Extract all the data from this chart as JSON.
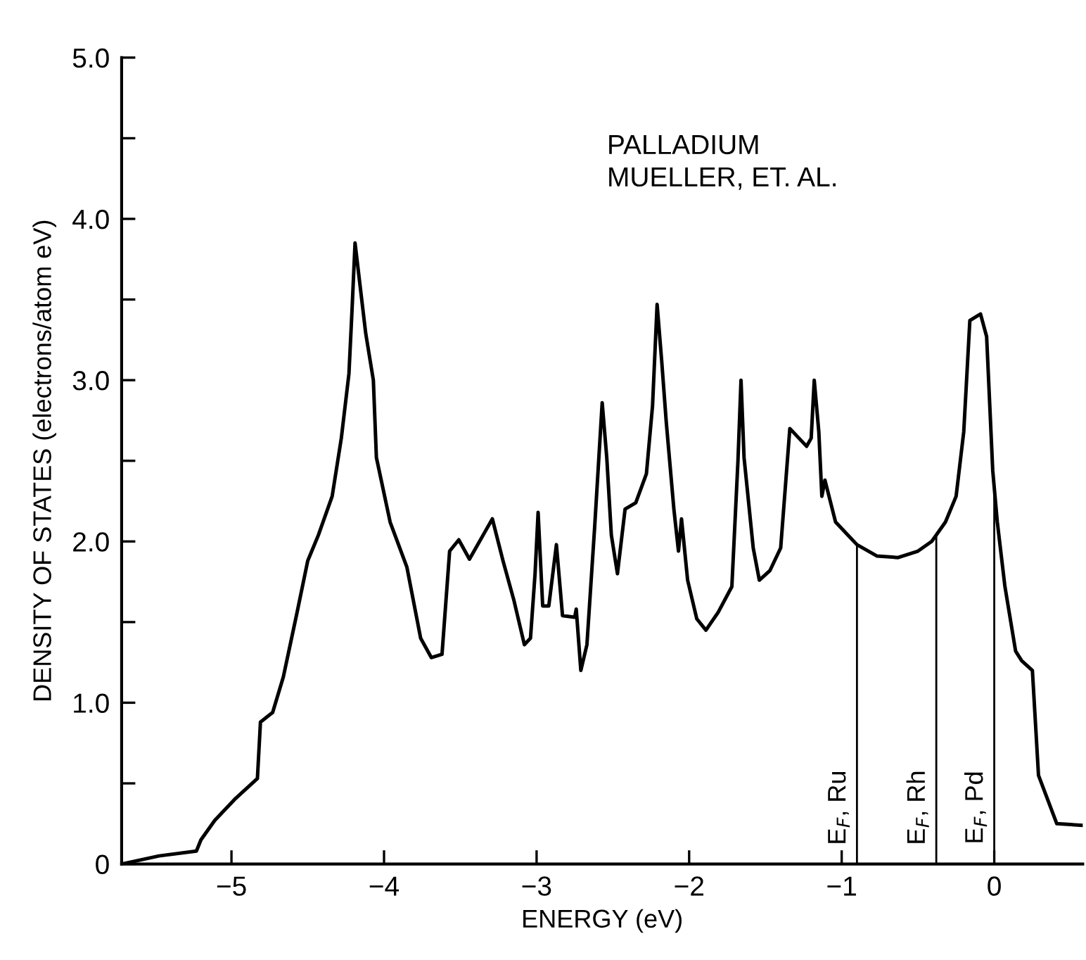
{
  "chart_data": {
    "type": "line",
    "xlabel": "ENERGY (eV)",
    "ylabel": "DENSITY OF STATES (electrons/atom eV)",
    "annotations": [
      "PALLADIUM",
      "MUELLER, ET. AL."
    ],
    "xlim": [
      -5.72,
      0.58
    ],
    "xticks": [
      {
        "value": -5,
        "label": "−5"
      },
      {
        "value": -4,
        "label": "−4"
      },
      {
        "value": -3,
        "label": "−3"
      },
      {
        "value": -2,
        "label": "−2"
      },
      {
        "value": -1,
        "label": "−1"
      },
      0
    ],
    "ylim": [
      0,
      5
    ],
    "yticks": [
      {
        "value": 0,
        "label": "0"
      },
      {
        "value": 0.5,
        "label": null
      },
      {
        "value": 1,
        "label": "1.0"
      },
      {
        "value": 1.5,
        "label": null
      },
      {
        "value": 2,
        "label": "2.0"
      },
      {
        "value": 2.5,
        "label": null
      },
      {
        "value": 3,
        "label": "3.0"
      },
      {
        "value": 3.5,
        "label": null
      },
      {
        "value": 4,
        "label": "4.0"
      },
      {
        "value": 4.5,
        "label": null
      },
      {
        "value": 5,
        "label": "5.0"
      }
    ],
    "grid": false,
    "legend": false,
    "ref_lines": [
      {
        "axis": "x",
        "value": -0.9,
        "label": "E$_{F}$, Ru",
        "color": "#000000"
      },
      {
        "axis": "x",
        "value": -0.38,
        "label": "E$_{F}$, Rh",
        "color": "#000000"
      },
      {
        "axis": "x",
        "value": 0.0,
        "label": "E$_{F}$, Pd",
        "color": "#000000"
      }
    ],
    "series": [
      {
        "color": "#000000",
        "x": [
          -5.72,
          -5.475,
          -5.23,
          -5.2,
          -5.11,
          -4.98,
          -4.83,
          -4.81,
          -4.73,
          -4.66,
          -4.57,
          -4.5,
          -4.43,
          -4.34,
          -4.28,
          -4.23,
          -4.21,
          -4.19,
          -4.16,
          -4.12,
          -4.07,
          -4.05,
          -3.96,
          -3.85,
          -3.76,
          -3.69,
          -3.62,
          -3.57,
          -3.51,
          -3.44,
          -3.35,
          -3.29,
          -3.22,
          -3.15,
          -3.08,
          -3.04,
          -3.01,
          -2.99,
          -2.96,
          -2.92,
          -2.87,
          -2.83,
          -2.75,
          -2.74,
          -2.71,
          -2.67,
          -2.62,
          -2.57,
          -2.54,
          -2.51,
          -2.47,
          -2.42,
          -2.35,
          -2.28,
          -2.24,
          -2.21,
          -2.18,
          -2.15,
          -2.1,
          -2.07,
          -2.05,
          -2.01,
          -1.95,
          -1.89,
          -1.81,
          -1.72,
          -1.68,
          -1.66,
          -1.64,
          -1.58,
          -1.54,
          -1.47,
          -1.4,
          -1.34,
          -1.28,
          -1.23,
          -1.2,
          -1.18,
          -1.15,
          -1.13,
          -1.11,
          -1.04,
          -0.9,
          -0.77,
          -0.63,
          -0.5,
          -0.41,
          -0.32,
          -0.25,
          -0.2,
          -0.16,
          -0.09,
          -0.05,
          -0.01,
          0.02,
          0.07,
          0.14,
          0.18,
          0.25,
          0.29,
          0.41,
          0.58
        ],
        "values": [
          0,
          0.05,
          0.08,
          0.15,
          0.27,
          0.4,
          0.53,
          0.88,
          0.94,
          1.16,
          1.56,
          1.88,
          2.04,
          2.28,
          2.64,
          3.04,
          3.43,
          3.85,
          3.61,
          3.29,
          3.0,
          2.52,
          2.12,
          1.84,
          1.4,
          1.28,
          1.3,
          1.94,
          2.01,
          1.89,
          2.04,
          2.14,
          1.88,
          1.64,
          1.36,
          1.4,
          1.8,
          2.18,
          1.6,
          1.6,
          1.98,
          1.54,
          1.53,
          1.58,
          1.2,
          1.36,
          2.08,
          2.86,
          2.52,
          2.04,
          1.8,
          2.2,
          2.24,
          2.42,
          2.84,
          3.47,
          3.12,
          2.74,
          2.2,
          1.94,
          2.14,
          1.76,
          1.52,
          1.45,
          1.56,
          1.72,
          2.5,
          3.0,
          2.52,
          1.96,
          1.76,
          1.82,
          1.96,
          2.7,
          2.64,
          2.59,
          2.64,
          3.0,
          2.68,
          2.28,
          2.38,
          2.12,
          1.98,
          1.91,
          1.9,
          1.94,
          2.0,
          2.12,
          2.28,
          2.68,
          3.37,
          3.41,
          3.27,
          2.44,
          2.12,
          1.72,
          1.32,
          1.26,
          1.2,
          0.55,
          0.25,
          0.24
        ]
      }
    ]
  }
}
